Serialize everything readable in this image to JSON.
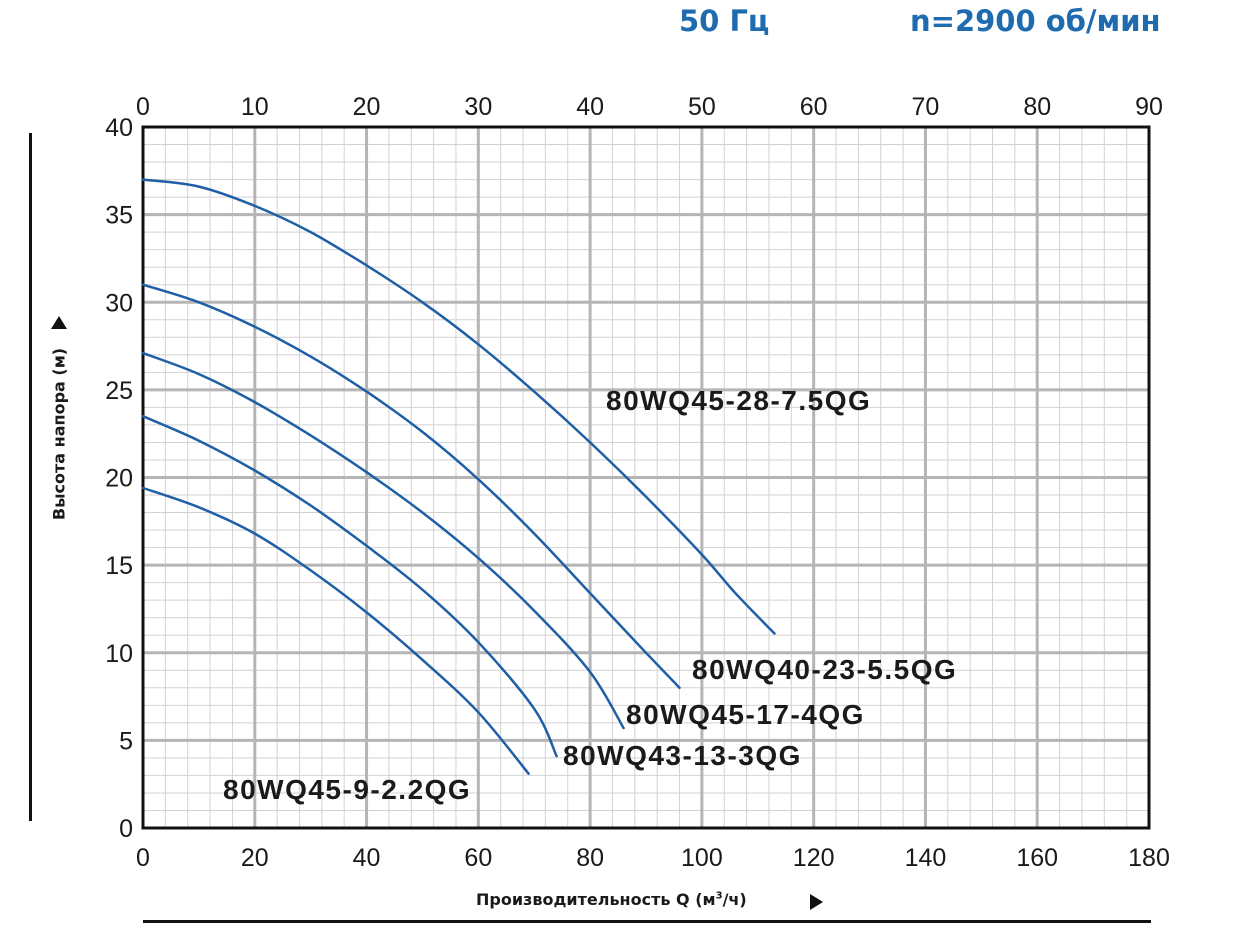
{
  "header": {
    "frequency": "50 Гц",
    "speed": "n=2900 об/мин"
  },
  "axes": {
    "ylabel": "Высота напора (м)",
    "xlabel_main": "Производительность Q (м",
    "xlabel_sup": "3",
    "xlabel_tail": "/ч)"
  },
  "colors": {
    "curve": "#1f5fa6",
    "grid_major": "#b5b5b5",
    "grid_minor": "#d2d2d2",
    "frame": "#111111",
    "header": "#1f6bb0"
  },
  "chart_data": {
    "type": "line",
    "x_bottom": {
      "range": [
        0,
        180
      ],
      "ticks": [
        0,
        20,
        40,
        60,
        80,
        100,
        120,
        140,
        160,
        180
      ]
    },
    "x_top": {
      "range": [
        0,
        90
      ],
      "ticks": [
        0,
        10,
        20,
        30,
        40,
        50,
        60,
        70,
        80,
        90
      ]
    },
    "y": {
      "range": [
        0,
        40
      ],
      "ticks": [
        0,
        5,
        10,
        15,
        20,
        25,
        30,
        35,
        40
      ]
    },
    "grid": true,
    "series": [
      {
        "name": "80WQ45-28-7.5QG",
        "x": [
          0,
          10,
          20,
          30,
          40,
          50,
          60,
          70,
          80,
          90,
          100,
          106,
          113
        ],
        "y": [
          37,
          36.6,
          35.5,
          34,
          32.1,
          30,
          27.6,
          24.9,
          22,
          18.9,
          15.6,
          13.4,
          11.1
        ]
      },
      {
        "name": "80WQ40-23-5.5QG",
        "x": [
          0,
          10,
          20,
          30,
          40,
          50,
          60,
          70,
          80,
          90,
          96
        ],
        "y": [
          31,
          30,
          28.6,
          26.9,
          24.9,
          22.6,
          19.9,
          16.8,
          13.4,
          10,
          8
        ]
      },
      {
        "name": "80WQ45-17-4QG",
        "x": [
          0,
          10,
          20,
          30,
          40,
          50,
          60,
          70,
          80,
          86
        ],
        "y": [
          27.1,
          25.9,
          24.3,
          22.4,
          20.3,
          18,
          15.4,
          12.4,
          8.9,
          5.7
        ]
      },
      {
        "name": "80WQ43-13-3QG",
        "x": [
          0,
          10,
          20,
          30,
          40,
          50,
          60,
          70,
          74
        ],
        "y": [
          23.5,
          22.1,
          20.4,
          18.4,
          16.1,
          13.6,
          10.6,
          6.8,
          4.1
        ]
      },
      {
        "name": "80WQ45-9-2.2QG",
        "x": [
          0,
          10,
          20,
          30,
          40,
          50,
          60,
          69
        ],
        "y": [
          19.4,
          18.3,
          16.8,
          14.7,
          12.3,
          9.6,
          6.6,
          3.1
        ]
      }
    ]
  }
}
